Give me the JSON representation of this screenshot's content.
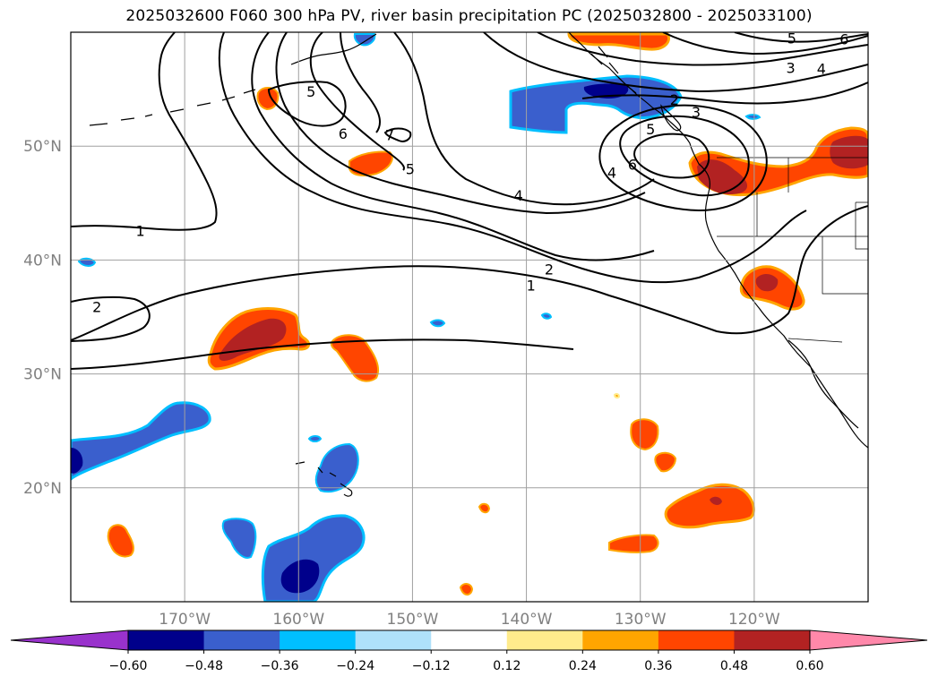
{
  "title": "2025032600 F060 300 hPa PV, river basin precipitation PC (2025032800 - 2025033100)",
  "map": {
    "lon_range": [
      -180,
      -110
    ],
    "lat_range": [
      10,
      60
    ],
    "gridlines": true,
    "lat_ticks": [
      {
        "lat": 50,
        "label": "50°N"
      },
      {
        "lat": 40,
        "label": "40°N"
      },
      {
        "lat": 30,
        "label": "30°N"
      },
      {
        "lat": 20,
        "label": "20°N"
      }
    ],
    "lon_ticks": [
      {
        "lon": -170,
        "label": "170°W"
      },
      {
        "lon": -160,
        "label": "160°W"
      },
      {
        "lon": -150,
        "label": "150°W"
      },
      {
        "lon": -140,
        "label": "140°W"
      },
      {
        "lon": -130,
        "label": "130°W"
      },
      {
        "lon": -120,
        "label": "120°W"
      }
    ],
    "pv_contour_labels": [
      {
        "text": "1",
        "lon": -173.9,
        "lat": 42.6
      },
      {
        "text": "2",
        "lon": -177.7,
        "lat": 35.9
      },
      {
        "text": "1",
        "lon": -139.6,
        "lat": 37.8
      },
      {
        "text": "2",
        "lon": -138.0,
        "lat": 39.2
      },
      {
        "text": "4",
        "lon": -140.7,
        "lat": 45.7
      },
      {
        "text": "4",
        "lon": -132.5,
        "lat": 47.7
      },
      {
        "text": "6",
        "lon": -130.7,
        "lat": 48.4
      },
      {
        "text": "5",
        "lon": -129.1,
        "lat": 51.5
      },
      {
        "text": "2",
        "lon": -127.0,
        "lat": 54.1
      },
      {
        "text": "3",
        "lon": -125.1,
        "lat": 53.0
      },
      {
        "text": "3",
        "lon": -116.8,
        "lat": 56.9
      },
      {
        "text": "4",
        "lon": -114.1,
        "lat": 56.8
      },
      {
        "text": "5",
        "lon": -116.7,
        "lat": 59.5
      },
      {
        "text": "6",
        "lon": -112.1,
        "lat": 59.4
      },
      {
        "text": "5",
        "lon": -150.2,
        "lat": 48.0
      },
      {
        "text": "6",
        "lon": -156.1,
        "lat": 51.1
      },
      {
        "text": "7",
        "lon": -152.0,
        "lat": 51.0
      },
      {
        "text": "5",
        "lon": -158.9,
        "lat": 54.8
      }
    ]
  },
  "colorbar": {
    "ticks": [
      "−0.60",
      "−0.48",
      "−0.36",
      "−0.24",
      "−0.12",
      "0.12",
      "0.24",
      "0.36",
      "0.48",
      "0.60"
    ],
    "colors": [
      "#9932cc",
      "#00008b",
      "#3a5fcd",
      "#00bfff",
      "#afe1fa",
      "#ffffff",
      "#ffeb8c",
      "#ffa500",
      "#ff4500",
      "#b22222",
      "#ff88aa"
    ]
  }
}
